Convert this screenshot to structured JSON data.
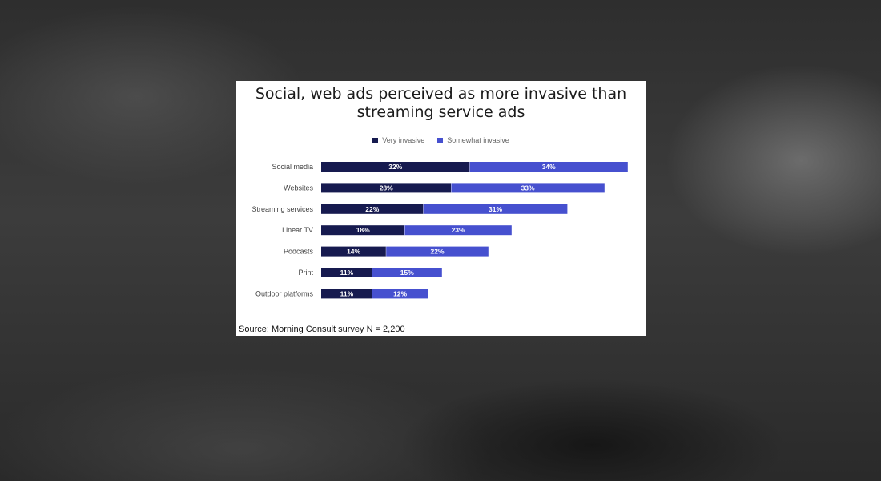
{
  "chart_data": {
    "type": "bar",
    "orientation": "horizontal",
    "stacked": true,
    "title": "Social, web ads perceived as more invasive than streaming service ads",
    "title_lines": [
      "Social, web ads perceived as more invasive than",
      "streaming service ads"
    ],
    "categories": [
      "Social media",
      "Websites",
      "Streaming services",
      "Linear TV",
      "Podcasts",
      "Print",
      "Outdoor platforms"
    ],
    "series": [
      {
        "name": "Very invasive",
        "values": [
          32,
          28,
          22,
          18,
          14,
          11,
          11
        ],
        "labels": [
          "32%",
          "28%",
          "22%",
          "18%",
          "14%",
          "11%",
          "11%"
        ],
        "color": "#161a4f"
      },
      {
        "name": "Somewhat invasive",
        "values": [
          34,
          33,
          31,
          23,
          22,
          15,
          12
        ],
        "labels": [
          "34%",
          "33%",
          "31%",
          "23%",
          "22%",
          "15%",
          "12%"
        ],
        "color": "#4650cf"
      }
    ],
    "legend_position": "top-center",
    "grid": false,
    "source": "Source: Morning Consult survey  N = 2,200"
  }
}
